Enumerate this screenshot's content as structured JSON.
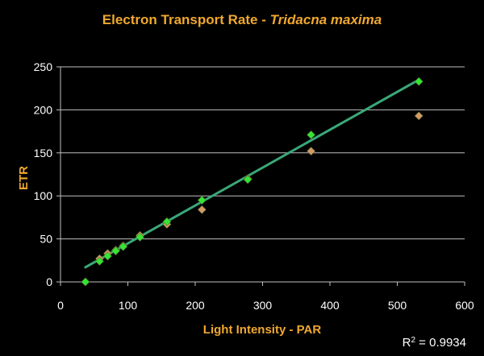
{
  "chart_data": {
    "type": "scatter",
    "title": "Electron Transport Rate - ",
    "title_species": "Tridacna maxima",
    "xlabel": "Light Intensity - PAR",
    "ylabel": "ETR",
    "xlim": [
      0,
      600
    ],
    "ylim": [
      0,
      250
    ],
    "x_ticks": [
      0,
      100,
      200,
      300,
      400,
      500,
      600
    ],
    "y_ticks": [
      0,
      50,
      100,
      150,
      200,
      250
    ],
    "grid": "horizontal",
    "colors": {
      "background": "#000000",
      "plot_area": "#000000",
      "text": "#ffffff",
      "accent": "#f0a830",
      "gridline": "#bfbfbf",
      "trendline": "#3aa87a",
      "series_green": "#33e633",
      "series_orange": "#d49a66"
    },
    "series": [
      {
        "marker": "diamond",
        "color": "#d49a66",
        "points": [
          [
            37,
            0
          ],
          [
            58,
            27
          ],
          [
            70,
            33
          ],
          [
            82,
            37
          ],
          [
            93,
            42
          ],
          [
            118,
            54
          ],
          [
            158,
            67
          ],
          [
            210,
            84
          ],
          [
            278,
            120
          ],
          [
            372,
            152
          ],
          [
            532,
            193
          ]
        ]
      },
      {
        "marker": "diamond",
        "color": "#33e633",
        "points": [
          [
            37,
            0
          ],
          [
            58,
            24
          ],
          [
            70,
            30
          ],
          [
            82,
            36
          ],
          [
            93,
            41
          ],
          [
            118,
            52
          ],
          [
            158,
            70
          ],
          [
            210,
            95
          ],
          [
            278,
            119
          ],
          [
            372,
            171
          ],
          [
            532,
            233
          ]
        ]
      }
    ],
    "trendline": {
      "type": "linear",
      "x_range": [
        37,
        532
      ],
      "y_range": [
        17,
        235
      ]
    },
    "r_squared_prefix": "R",
    "r_squared_exponent": "2",
    "r_squared_value": " = 0.9934"
  }
}
